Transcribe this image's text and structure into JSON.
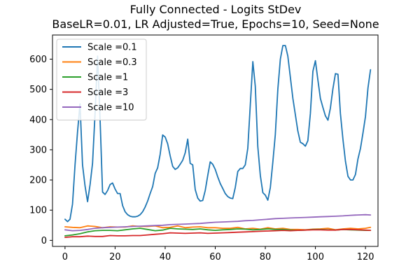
{
  "chart_data": {
    "type": "line",
    "title": "Fully Connected - Logits StDev",
    "subtitle": "BaseLR=0.01, LR Adjusted=True, Epochs=10, Seed=None",
    "xlabel": "",
    "ylabel": "",
    "xlim": [
      -5,
      125
    ],
    "ylim": [
      -20,
      680
    ],
    "xticks": [
      0,
      20,
      40,
      60,
      80,
      100,
      120
    ],
    "yticks": [
      0,
      100,
      200,
      300,
      400,
      500,
      600
    ],
    "grid": false,
    "legend_position": "top-left",
    "series": [
      {
        "name": "Scale =0.1",
        "color": "#1f77b4",
        "points": [
          [
            0,
            70
          ],
          [
            1,
            62
          ],
          [
            2,
            70
          ],
          [
            3,
            120
          ],
          [
            4,
            250
          ],
          [
            5,
            360
          ],
          [
            6,
            452
          ],
          [
            7,
            250
          ],
          [
            8,
            180
          ],
          [
            9,
            128
          ],
          [
            10,
            185
          ],
          [
            11,
            255
          ],
          [
            12,
            420
          ],
          [
            13,
            610
          ],
          [
            14,
            400
          ],
          [
            15,
            160
          ],
          [
            16,
            152
          ],
          [
            17,
            165
          ],
          [
            18,
            185
          ],
          [
            19,
            190
          ],
          [
            20,
            170
          ],
          [
            21,
            155
          ],
          [
            22,
            155
          ],
          [
            23,
            115
          ],
          [
            24,
            95
          ],
          [
            25,
            85
          ],
          [
            26,
            80
          ],
          [
            27,
            78
          ],
          [
            28,
            78
          ],
          [
            29,
            80
          ],
          [
            30,
            85
          ],
          [
            31,
            95
          ],
          [
            32,
            110
          ],
          [
            33,
            130
          ],
          [
            34,
            155
          ],
          [
            35,
            178
          ],
          [
            36,
            222
          ],
          [
            37,
            240
          ],
          [
            38,
            285
          ],
          [
            39,
            349
          ],
          [
            40,
            342
          ],
          [
            41,
            320
          ],
          [
            42,
            280
          ],
          [
            43,
            245
          ],
          [
            44,
            235
          ],
          [
            45,
            240
          ],
          [
            46,
            252
          ],
          [
            47,
            265
          ],
          [
            48,
            290
          ],
          [
            49,
            335
          ],
          [
            50,
            255
          ],
          [
            51,
            250
          ],
          [
            52,
            168
          ],
          [
            53,
            140
          ],
          [
            54,
            130
          ],
          [
            55,
            132
          ],
          [
            56,
            165
          ],
          [
            57,
            215
          ],
          [
            58,
            260
          ],
          [
            59,
            252
          ],
          [
            60,
            235
          ],
          [
            61,
            210
          ],
          [
            62,
            188
          ],
          [
            63,
            172
          ],
          [
            64,
            155
          ],
          [
            65,
            145
          ],
          [
            66,
            140
          ],
          [
            67,
            138
          ],
          [
            68,
            175
          ],
          [
            69,
            228
          ],
          [
            70,
            238
          ],
          [
            71,
            238
          ],
          [
            72,
            250
          ],
          [
            73,
            305
          ],
          [
            74,
            450
          ],
          [
            75,
            592
          ],
          [
            76,
            510
          ],
          [
            77,
            310
          ],
          [
            78,
            215
          ],
          [
            79,
            158
          ],
          [
            80,
            150
          ],
          [
            81,
            133
          ],
          [
            82,
            175
          ],
          [
            83,
            260
          ],
          [
            84,
            350
          ],
          [
            85,
            500
          ],
          [
            86,
            600
          ],
          [
            87,
            645
          ],
          [
            88,
            645
          ],
          [
            89,
            610
          ],
          [
            90,
            540
          ],
          [
            91,
            470
          ],
          [
            92,
            415
          ],
          [
            93,
            362
          ],
          [
            94,
            325
          ],
          [
            95,
            320
          ],
          [
            96,
            312
          ],
          [
            97,
            330
          ],
          [
            98,
            420
          ],
          [
            99,
            560
          ],
          [
            100,
            595
          ],
          [
            101,
            530
          ],
          [
            102,
            470
          ],
          [
            103,
            440
          ],
          [
            104,
            412
          ],
          [
            105,
            398
          ],
          [
            106,
            438
          ],
          [
            107,
            502
          ],
          [
            108,
            552
          ],
          [
            109,
            550
          ],
          [
            110,
            420
          ],
          [
            111,
            335
          ],
          [
            112,
            262
          ],
          [
            113,
            212
          ],
          [
            114,
            200
          ],
          [
            115,
            200
          ],
          [
            116,
            218
          ],
          [
            117,
            270
          ],
          [
            118,
            305
          ],
          [
            119,
            355
          ],
          [
            120,
            410
          ],
          [
            121,
            505
          ],
          [
            122,
            565
          ]
        ]
      },
      {
        "name": "Scale =0.3",
        "color": "#ff7f0e",
        "points": [
          [
            0,
            45
          ],
          [
            3,
            43
          ],
          [
            6,
            42
          ],
          [
            9,
            48
          ],
          [
            12,
            46
          ],
          [
            15,
            42
          ],
          [
            18,
            45
          ],
          [
            21,
            44
          ],
          [
            24,
            44
          ],
          [
            27,
            48
          ],
          [
            30,
            46
          ],
          [
            33,
            46
          ],
          [
            36,
            48
          ],
          [
            39,
            42
          ],
          [
            42,
            43
          ],
          [
            45,
            48
          ],
          [
            48,
            42
          ],
          [
            51,
            44
          ],
          [
            54,
            45
          ],
          [
            57,
            42
          ],
          [
            60,
            42
          ],
          [
            63,
            40
          ],
          [
            66,
            40
          ],
          [
            69,
            43
          ],
          [
            72,
            38
          ],
          [
            75,
            40
          ],
          [
            78,
            37
          ],
          [
            81,
            42
          ],
          [
            84,
            38
          ],
          [
            87,
            40
          ],
          [
            90,
            36
          ],
          [
            93,
            36
          ],
          [
            96,
            35
          ],
          [
            99,
            37
          ],
          [
            102,
            38
          ],
          [
            105,
            40
          ],
          [
            108,
            35
          ],
          [
            111,
            38
          ],
          [
            114,
            40
          ],
          [
            117,
            38
          ],
          [
            120,
            40
          ],
          [
            122,
            43
          ]
        ]
      },
      {
        "name": "Scale =1",
        "color": "#2ca02c",
        "points": [
          [
            0,
            15
          ],
          [
            3,
            18
          ],
          [
            6,
            22
          ],
          [
            9,
            28
          ],
          [
            12,
            32
          ],
          [
            15,
            33
          ],
          [
            18,
            33
          ],
          [
            21,
            32
          ],
          [
            24,
            35
          ],
          [
            27,
            38
          ],
          [
            30,
            40
          ],
          [
            33,
            36
          ],
          [
            36,
            32
          ],
          [
            39,
            34
          ],
          [
            42,
            40
          ],
          [
            45,
            38
          ],
          [
            48,
            37
          ],
          [
            51,
            36
          ],
          [
            54,
            38
          ],
          [
            57,
            35
          ],
          [
            60,
            33
          ],
          [
            63,
            35
          ],
          [
            66,
            36
          ],
          [
            69,
            38
          ],
          [
            72,
            37
          ],
          [
            75,
            35
          ],
          [
            78,
            36
          ],
          [
            81,
            38
          ],
          [
            84,
            36
          ],
          [
            87,
            36
          ],
          [
            90,
            34
          ],
          [
            93,
            33
          ],
          [
            96,
            34
          ],
          [
            99,
            36
          ],
          [
            102,
            36
          ],
          [
            105,
            35
          ],
          [
            108,
            34
          ],
          [
            111,
            36
          ],
          [
            114,
            35
          ],
          [
            117,
            34
          ],
          [
            120,
            33
          ],
          [
            122,
            33
          ]
        ]
      },
      {
        "name": "Scale =3",
        "color": "#d62728",
        "points": [
          [
            0,
            10
          ],
          [
            3,
            12
          ],
          [
            6,
            12
          ],
          [
            9,
            14
          ],
          [
            12,
            13
          ],
          [
            15,
            13
          ],
          [
            18,
            16
          ],
          [
            21,
            15
          ],
          [
            24,
            15
          ],
          [
            27,
            16
          ],
          [
            30,
            16
          ],
          [
            33,
            18
          ],
          [
            36,
            20
          ],
          [
            39,
            22
          ],
          [
            42,
            25
          ],
          [
            45,
            24
          ],
          [
            48,
            23
          ],
          [
            51,
            24
          ],
          [
            54,
            25
          ],
          [
            57,
            23
          ],
          [
            60,
            24
          ],
          [
            63,
            25
          ],
          [
            66,
            26
          ],
          [
            69,
            27
          ],
          [
            72,
            28
          ],
          [
            75,
            29
          ],
          [
            78,
            30
          ],
          [
            81,
            31
          ],
          [
            84,
            32
          ],
          [
            87,
            33
          ],
          [
            90,
            32
          ],
          [
            93,
            33
          ],
          [
            96,
            34
          ],
          [
            99,
            35
          ],
          [
            102,
            35
          ],
          [
            105,
            34
          ],
          [
            108,
            34
          ],
          [
            111,
            36
          ],
          [
            114,
            36
          ],
          [
            117,
            35
          ],
          [
            120,
            34
          ],
          [
            122,
            33
          ]
        ]
      },
      {
        "name": "Scale =10",
        "color": "#9467bd",
        "points": [
          [
            0,
            35
          ],
          [
            3,
            32
          ],
          [
            6,
            33
          ],
          [
            9,
            36
          ],
          [
            12,
            40
          ],
          [
            15,
            42
          ],
          [
            18,
            43
          ],
          [
            21,
            44
          ],
          [
            24,
            45
          ],
          [
            27,
            46
          ],
          [
            30,
            47
          ],
          [
            33,
            48
          ],
          [
            36,
            49
          ],
          [
            39,
            50
          ],
          [
            42,
            52
          ],
          [
            45,
            53
          ],
          [
            48,
            54
          ],
          [
            51,
            55
          ],
          [
            54,
            56
          ],
          [
            57,
            58
          ],
          [
            60,
            60
          ],
          [
            63,
            61
          ],
          [
            66,
            62
          ],
          [
            69,
            63
          ],
          [
            72,
            65
          ],
          [
            75,
            66
          ],
          [
            78,
            68
          ],
          [
            81,
            70
          ],
          [
            84,
            72
          ],
          [
            87,
            73
          ],
          [
            90,
            74
          ],
          [
            93,
            75
          ],
          [
            96,
            76
          ],
          [
            99,
            77
          ],
          [
            102,
            78
          ],
          [
            105,
            79
          ],
          [
            108,
            80
          ],
          [
            111,
            81
          ],
          [
            114,
            83
          ],
          [
            117,
            84
          ],
          [
            120,
            85
          ],
          [
            122,
            84
          ]
        ]
      }
    ]
  }
}
